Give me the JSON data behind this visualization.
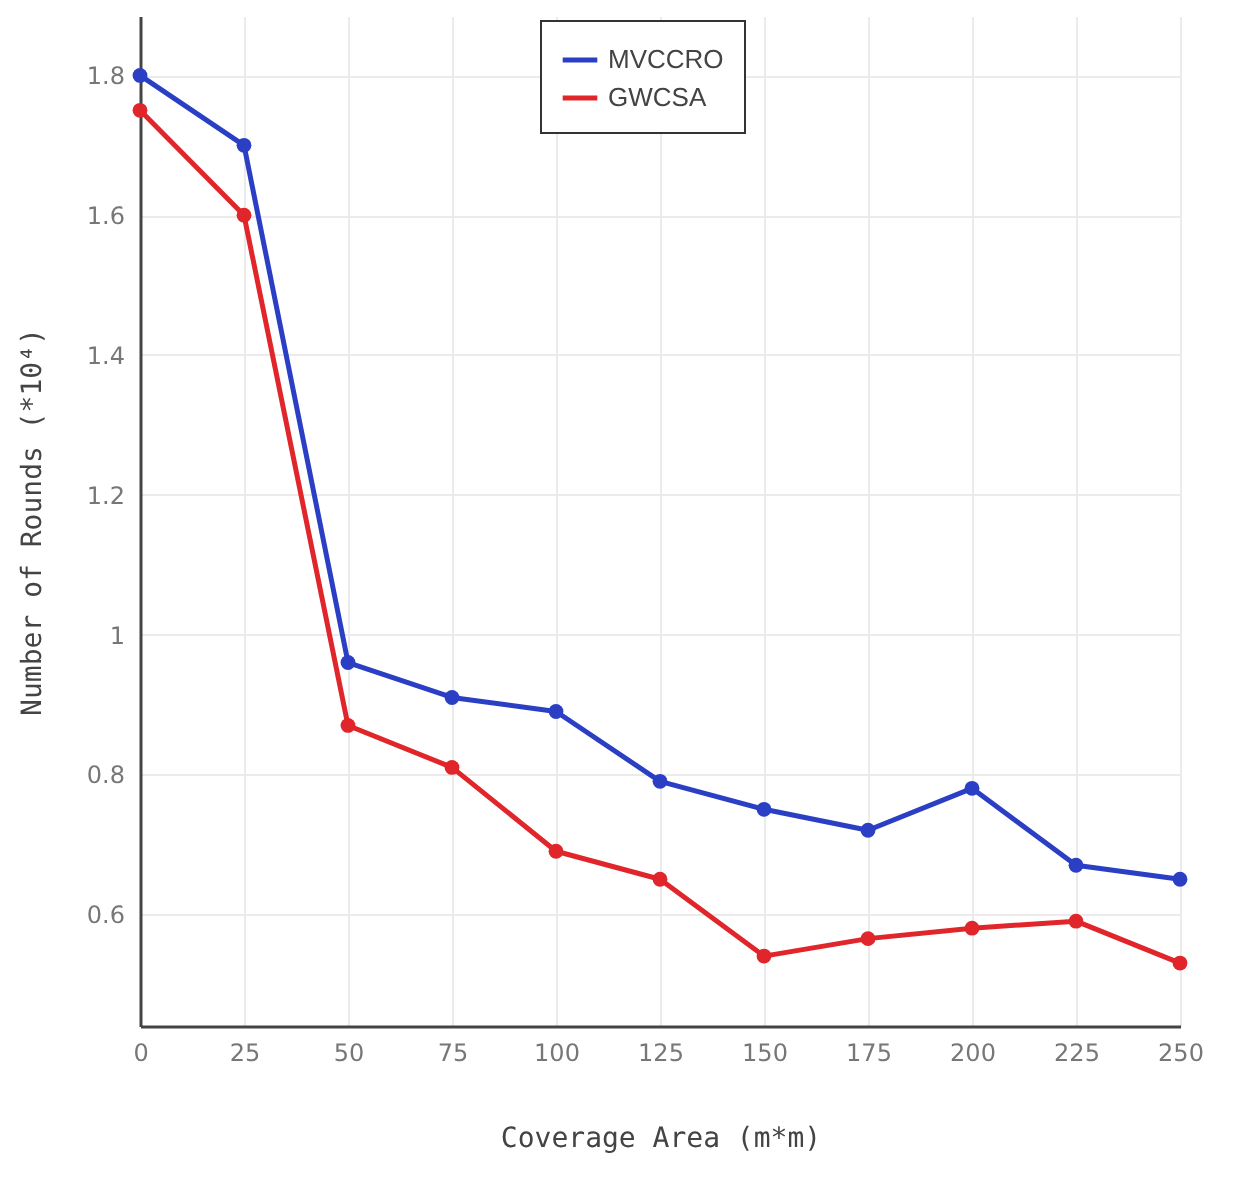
{
  "chart_data": {
    "type": "line",
    "xlabel": "Coverage Area (m*m)",
    "ylabel": "Number of Rounds (*10⁴)",
    "x": [
      0,
      25,
      50,
      75,
      100,
      125,
      150,
      175,
      200,
      225,
      250
    ],
    "series": [
      {
        "name": "MVCCRO",
        "color": "#2b3fc4",
        "values": [
          1.8,
          1.7,
          0.96,
          0.91,
          0.89,
          0.79,
          0.75,
          0.72,
          0.78,
          0.67,
          0.65
        ]
      },
      {
        "name": "GWCSA",
        "color": "#e0262a",
        "values": [
          1.75,
          1.6,
          0.87,
          0.81,
          0.69,
          0.65,
          0.54,
          0.565,
          0.58,
          0.59,
          0.53
        ]
      }
    ],
    "xlim": [
      0,
      250
    ],
    "xticks": [
      0,
      25,
      50,
      75,
      100,
      125,
      150,
      175,
      200,
      225,
      250
    ],
    "ylim": [
      0.44,
      1.885
    ],
    "yticks": [
      0.6,
      0.8,
      1,
      1.2,
      1.4,
      1.6,
      1.8
    ],
    "grid": true,
    "legend": "top",
    "marker": "circle",
    "line_style": "solid"
  }
}
